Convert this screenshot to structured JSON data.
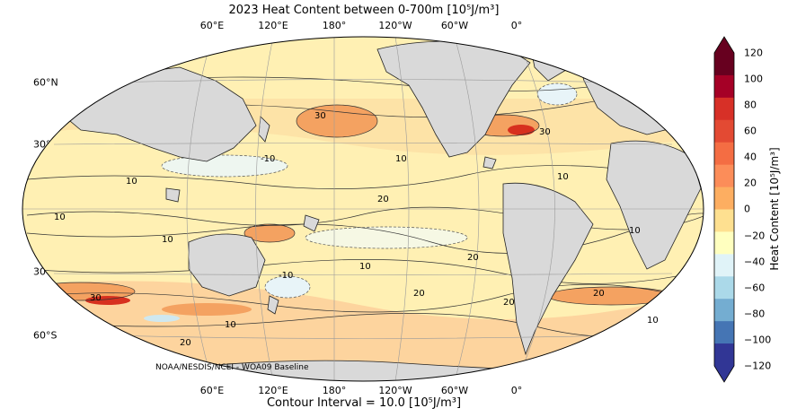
{
  "title": "2023 Heat Content between 0-700m [10⁵J/m³]",
  "footer": "Contour Interval = 10.0 [10⁵J/m³]",
  "credit": "NOAA/NESDIS/NCEI - WOA09 Baseline",
  "longitude_labels": [
    "60°E",
    "120°E",
    "180°",
    "120°W",
    "60°W",
    "0°"
  ],
  "latitude_labels": [
    "60°N",
    "30°N",
    "0°",
    "30°S",
    "60°S"
  ],
  "colorbar": {
    "label": "Heat Content [10⁵J/m³]",
    "ticks": [
      "120",
      "100",
      "80",
      "60",
      "40",
      "20",
      "0",
      "−20",
      "−40",
      "−60",
      "−80",
      "−100",
      "−120"
    ],
    "colors": [
      "#67001f",
      "#a50026",
      "#d73027",
      "#e34a33",
      "#f46d43",
      "#fc8d59",
      "#fdae61",
      "#fee090",
      "#ffffbf",
      "#e0f3f8",
      "#abd9e9",
      "#74add1",
      "#4575b4",
      "#313695"
    ]
  },
  "contour_labels": [
    "10",
    "20",
    "30",
    "10",
    "-10",
    "20",
    "10",
    "30",
    "10",
    "20",
    "10",
    "-10",
    "20",
    "10",
    "10",
    "20",
    "30",
    "10",
    "20",
    "10"
  ],
  "colors": {
    "land": "#d9d9d9",
    "ocean_base": "#fff0b3",
    "warm": "#fdd49e",
    "warmer": "#f4a261",
    "hot": "#d7301f",
    "cool": "#e8f4f8"
  }
}
